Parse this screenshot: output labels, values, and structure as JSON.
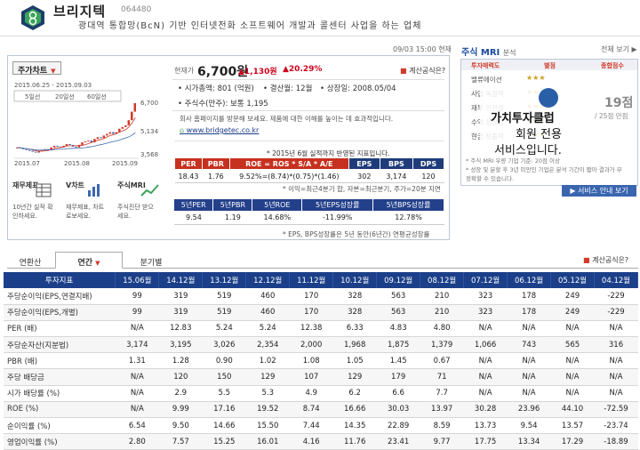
{
  "company": {
    "name": "브리지텍",
    "code": "064480",
    "desc": "광대역 통합망(BcN) 기반 인터넷전화 소프트웨어 개발과 콜센터 사업을 하는 업체"
  },
  "datetime": "09/03 15:00 현재",
  "chart": {
    "selector": "주가차트",
    "range": "2015.06.25 - 2015.09.03",
    "legend": [
      "5일선",
      "20일선",
      "60일선"
    ],
    "yticks": [
      "6,700",
      "5,134",
      "3,568"
    ],
    "xticks": [
      "2015.07",
      "2015.08",
      "2015.09"
    ],
    "price_series": [
      4100,
      4050,
      4000,
      3950,
      3900,
      3850,
      3800,
      3900,
      3950,
      4000,
      3950,
      4100,
      4200,
      4150,
      4100,
      4200,
      4300,
      4250,
      4150,
      4100,
      4250,
      4400,
      4450,
      4500,
      4400,
      4600,
      4700,
      4650,
      4800,
      4900,
      5000,
      4900,
      5000,
      5200,
      5300,
      5400,
      5700,
      6200,
      6700
    ]
  },
  "quick": [
    {
      "title": "재무제표",
      "sub": "10년간 실적 확인하세요."
    },
    {
      "title": "V차트",
      "sub": "재무제표, 차트로보세요."
    },
    {
      "title": "주식MRI",
      "sub": "주식진단 받으세요."
    }
  ],
  "price": {
    "label": "현재가",
    "value": "6,700원",
    "change": "▲1,130원",
    "pct": "▲20.29%"
  },
  "report_link": "계산공식은?",
  "info": {
    "mcap_label": "시가총액:",
    "mcap": "801 (억원)",
    "fy_label": "결산월:",
    "fy": "12월",
    "listed_label": "상장일:",
    "listed": "2008.05/04",
    "shares_label": "주식수(만주):",
    "shares": "보통 1,195"
  },
  "notice": "회사 홈페이지를 방문해 보세요. 제품에 대한 이해를 높이는 데 효과적입니다.",
  "homepage": "www.bridgetec.co.kr",
  "fin_note": "* 2015년 6월 실적까지 반영된 지표입니다.",
  "per_table": {
    "headers": [
      "PER",
      "PBR",
      "ROE = ROS * S/A * A/E",
      "EPS",
      "BPS",
      "DPS"
    ],
    "values": [
      "18.43",
      "1.76",
      "9.52%=(8.74)*(0.75)*(1.46)",
      "302",
      "3,174",
      "120"
    ]
  },
  "roe_note": "* 이익=최근4분기 합, 자본=최근분기, 주가=20분 지연",
  "avg_table": {
    "headers": [
      "5년PER",
      "5년PBR",
      "5년ROE",
      "5년EPS성장률",
      "5년BPS성장률"
    ],
    "values": [
      "9.54",
      "1.19",
      "14.68%",
      "-11.99%",
      "12.78%"
    ]
  },
  "eps_note": "* EPS, BPS성장률은 5년 동안(6년간) 연평균성장률",
  "mri": {
    "title": "주식 MRI",
    "subtitle": "분석",
    "all": "전체 보기",
    "headers": [
      "투자매력도",
      "별점",
      "종합점수"
    ],
    "rows": [
      "밸류에이션",
      "사업 독점력",
      "재무 안전성",
      "수익 성장성",
      "현금 창출력"
    ],
    "stars": [
      "★★★",
      "★★★",
      "★★★",
      "★★★",
      "★★★"
    ],
    "score": "19점",
    "score_total": "/ 25점 만점",
    "overlay": [
      "가치투자클럽",
      "회원 전용",
      "서비스입니다."
    ],
    "note": "* 주식 MRI 우량 기업 기준: 20점 이상\n* 성장 및 분할 후 3년 미만인 기업은 분석 기간이 짧아 결과가 부정확할 수 있습니다.",
    "button": "▶ 서비스 안내 보기"
  },
  "tabs": [
    "연환산",
    "연간",
    "분기별"
  ],
  "tab_arrow": "▼",
  "report_link2": "계산공식은?",
  "main_table": {
    "headers": [
      "투자지표",
      "15.06월",
      "14.12월",
      "13.12월",
      "12.12월",
      "11.12월",
      "10.12월",
      "09.12월",
      "08.12월",
      "07.12월",
      "06.12월",
      "05.12월",
      "04.12월"
    ],
    "rows": [
      {
        "label": "주당순이익(EPS,연결지배)",
        "values": [
          "99",
          "319",
          "519",
          "460",
          "170",
          "328",
          "563",
          "210",
          "323",
          "178",
          "249",
          "-229"
        ]
      },
      {
        "label": "주당순이익(EPS,개별)",
        "values": [
          "99",
          "319",
          "519",
          "460",
          "170",
          "328",
          "563",
          "210",
          "323",
          "178",
          "249",
          "-229"
        ]
      },
      {
        "label": "PER (배)",
        "values": [
          "N/A",
          "12.83",
          "5.24",
          "5.24",
          "12.38",
          "6.33",
          "4.83",
          "4.80",
          "N/A",
          "N/A",
          "N/A",
          "N/A"
        ]
      },
      {
        "label": "주당순자산(지분법)",
        "values": [
          "3,174",
          "3,195",
          "3,026",
          "2,354",
          "2,000",
          "1,968",
          "1,875",
          "1,379",
          "1,066",
          "743",
          "565",
          "316"
        ]
      },
      {
        "label": "PBR (배)",
        "values": [
          "1.31",
          "1.28",
          "0.90",
          "1.02",
          "1.08",
          "1.05",
          "1.45",
          "0.67",
          "N/A",
          "N/A",
          "N/A",
          "N/A"
        ]
      },
      {
        "label": "주당 배당금",
        "values": [
          "N/A",
          "120",
          "150",
          "129",
          "107",
          "129",
          "179",
          "71",
          "N/A",
          "N/A",
          "N/A",
          "N/A"
        ]
      },
      {
        "label": "시가 배당률 (%)",
        "values": [
          "N/A",
          "2.9",
          "5.5",
          "5.3",
          "4.9",
          "6.2",
          "6.6",
          "7.7",
          "N/A",
          "N/A",
          "N/A",
          "N/A"
        ]
      },
      {
        "label": "ROE (%)",
        "values": [
          "N/A",
          "9.99",
          "17.16",
          "19.52",
          "8.74",
          "16.66",
          "30.03",
          "13.97",
          "30.28",
          "23.96",
          "44.10",
          "-72.59"
        ]
      },
      {
        "label": "순이익률 (%)",
        "values": [
          "6.54",
          "9.50",
          "14.66",
          "15.50",
          "7.44",
          "14.35",
          "22.89",
          "8.59",
          "13.73",
          "9.54",
          "13.57",
          "-23.74"
        ]
      },
      {
        "label": "영업이익률 (%)",
        "values": [
          "2.80",
          "7.57",
          "15.25",
          "16.01",
          "4.16",
          "11.76",
          "23.41",
          "9.77",
          "17.75",
          "13.34",
          "17.29",
          "-18.89"
        ]
      }
    ]
  }
}
